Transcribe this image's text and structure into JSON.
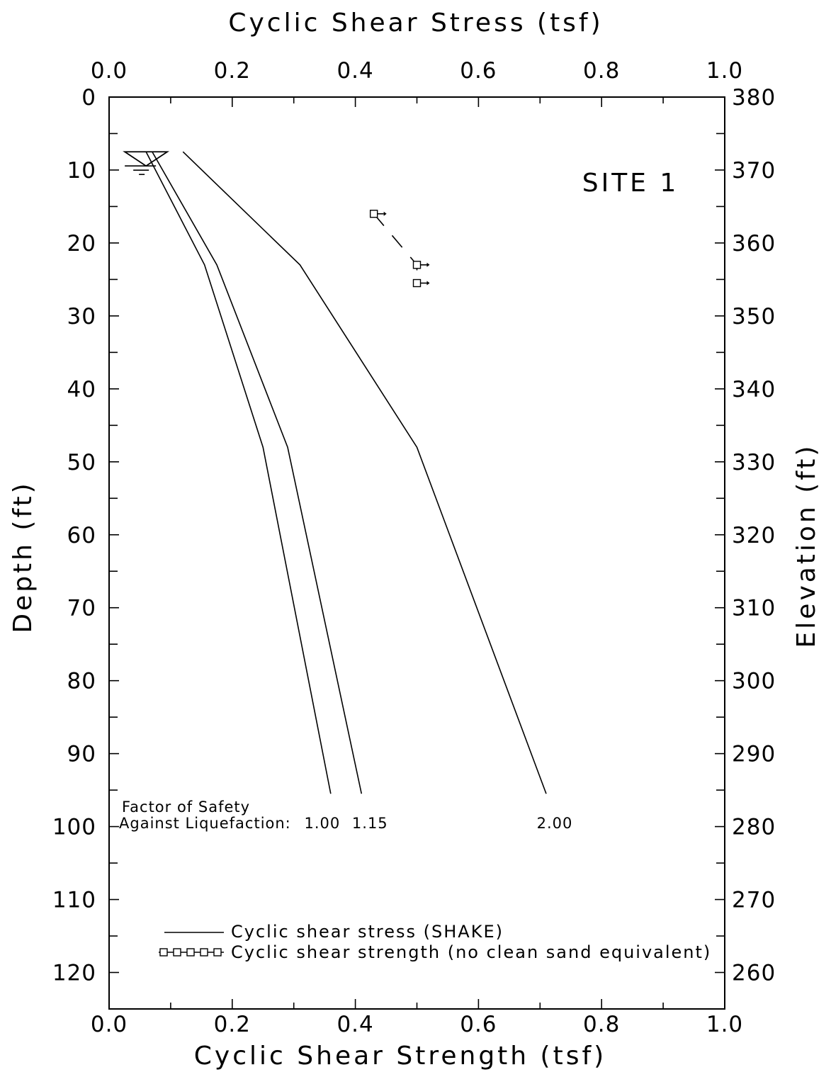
{
  "chart_data": {
    "type": "line",
    "title": "Cyclic Shear Stress (tsf)",
    "top_xlabel": "Cyclic Shear Stress (tsf)",
    "xlabel": "Cyclic Shear Strength (tsf)",
    "ylabel": "Depth (ft)",
    "right_ylabel": "Elevation (ft)",
    "xlim": [
      0.0,
      1.0
    ],
    "ylim": [
      0,
      125
    ],
    "y_inverted": true,
    "right_ylim": [
      380,
      255
    ],
    "x_ticks": [
      "0.0",
      "0.2",
      "0.4",
      "0.6",
      "0.8",
      "1.0"
    ],
    "y_ticks": [
      "0",
      "10",
      "20",
      "30",
      "40",
      "50",
      "60",
      "70",
      "80",
      "90",
      "100",
      "110",
      "120"
    ],
    "right_y_ticks": [
      "380",
      "370",
      "360",
      "350",
      "340",
      "330",
      "320",
      "310",
      "300",
      "290",
      "280",
      "270",
      "260"
    ],
    "site_label": "SITE 1",
    "fs_label_line1": "Factor of Safety",
    "fs_label_line2": "Against Liquefaction:",
    "series": [
      {
        "name": "Cyclic shear stress (SHAKE)",
        "fs_label": "1.00",
        "points": [
          [
            0.06,
            7.5
          ],
          [
            0.155,
            23
          ],
          [
            0.25,
            48
          ],
          [
            0.36,
            95.5
          ]
        ]
      },
      {
        "name": "Cyclic shear stress (SHAKE)",
        "fs_label": "1.15",
        "points": [
          [
            0.07,
            7.5
          ],
          [
            0.175,
            23
          ],
          [
            0.29,
            48
          ],
          [
            0.41,
            95.5
          ]
        ]
      },
      {
        "name": "Cyclic shear stress (SHAKE)",
        "fs_label": "2.00",
        "points": [
          [
            0.12,
            7.5
          ],
          [
            0.31,
            23
          ],
          [
            0.5,
            48
          ],
          [
            0.71,
            95.5
          ]
        ]
      },
      {
        "name": "Cyclic shear strength (no clean sand equivalent)",
        "points": [
          [
            0.43,
            16
          ],
          [
            0.5,
            23
          ],
          [
            0.5,
            25.5
          ]
        ]
      }
    ],
    "legend": {
      "placement": "bottom",
      "line_label": "Cyclic shear stress (SHAKE)",
      "marker_label": "Cyclic shear strength (no clean sand equivalent)"
    },
    "water_table_depth": 7.5,
    "grid": false
  }
}
